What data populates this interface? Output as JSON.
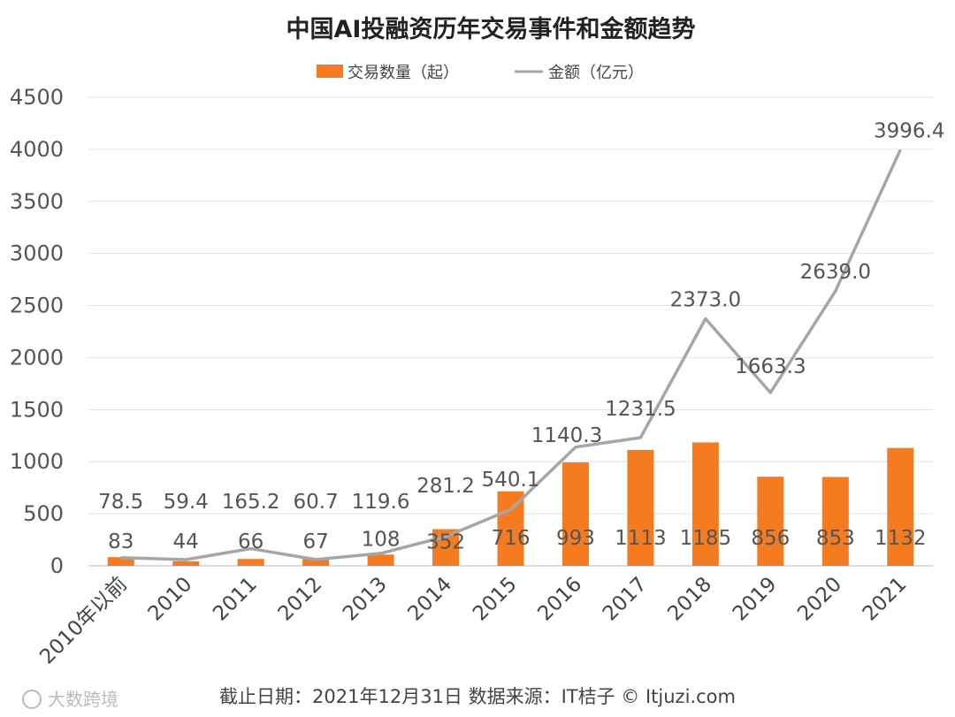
{
  "chart_data": {
    "type": "bar",
    "title": "中国AI投融资历年交易事件和金额趋势",
    "categories": [
      "2010年以前",
      "2010",
      "2011",
      "2012",
      "2013",
      "2014",
      "2015",
      "2016",
      "2017",
      "2018",
      "2019",
      "2020",
      "2021"
    ],
    "series": [
      {
        "name": "交易数量（起）",
        "type": "bar",
        "color": "#F47B20",
        "values": [
          83,
          44,
          66,
          67,
          108,
          352,
          716,
          993,
          1113,
          1185,
          856,
          853,
          1132
        ],
        "labels": [
          "83",
          "44",
          "66",
          "67",
          "108",
          "352",
          "716",
          "993",
          "1113",
          "1185",
          "856",
          "853",
          "1132"
        ]
      },
      {
        "name": "金额（亿元）",
        "type": "line",
        "color": "#A6A6A6",
        "values": [
          78.5,
          59.4,
          165.2,
          60.7,
          119.6,
          281.2,
          540.1,
          1140.3,
          1231.5,
          2373.0,
          1663.3,
          2639.0,
          3996.4
        ],
        "labels": [
          "78.5",
          "59.4",
          "165.2",
          "60.7",
          "119.6",
          "281.2",
          "540.1",
          "1140.3",
          "1231.5",
          "2373.0",
          "1663.3",
          "2639.0",
          "3996.4"
        ]
      }
    ],
    "ylim": [
      0,
      4500
    ],
    "yticks": [
      "0",
      "500",
      "1000",
      "1500",
      "2000",
      "2500",
      "3000",
      "3500",
      "4000",
      "4500"
    ],
    "grid": true,
    "legend_position": "top"
  },
  "footer": "截止日期：2021年12月31日    数据来源：IT桔子 © Itjuzi.com",
  "watermark": "大数跨境"
}
